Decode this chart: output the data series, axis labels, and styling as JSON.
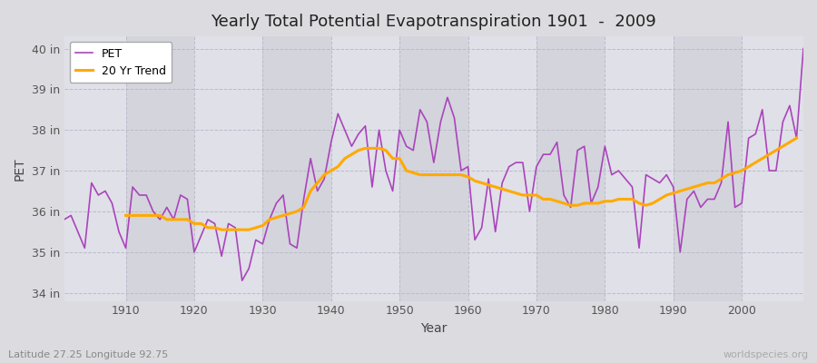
{
  "title": "Yearly Total Potential Evapotranspiration 1901  -  2009",
  "xlabel": "Year",
  "ylabel": "PET",
  "subtitle": "Latitude 27.25 Longitude 92.75",
  "watermark": "worldspecies.org",
  "ylim": [
    33.8,
    40.3
  ],
  "xlim": [
    1901,
    2009
  ],
  "yticks": [
    34,
    35,
    36,
    37,
    38,
    39,
    40
  ],
  "ytick_labels": [
    "34 in",
    "35 in",
    "36 in",
    "37 in",
    "38 in",
    "39 in",
    "40 in"
  ],
  "xticks": [
    1910,
    1920,
    1930,
    1940,
    1950,
    1960,
    1970,
    1980,
    1990,
    2000
  ],
  "pet_color": "#aa44bb",
  "trend_color": "#ffaa00",
  "bg_color": "#dcdce0",
  "plot_bg_light": "#e0e0e8",
  "plot_bg_dark": "#d4d4dc",
  "years": [
    1901,
    1902,
    1903,
    1904,
    1905,
    1906,
    1907,
    1908,
    1909,
    1910,
    1911,
    1912,
    1913,
    1914,
    1915,
    1916,
    1917,
    1918,
    1919,
    1920,
    1921,
    1922,
    1923,
    1924,
    1925,
    1926,
    1927,
    1928,
    1929,
    1930,
    1931,
    1932,
    1933,
    1934,
    1935,
    1936,
    1937,
    1938,
    1939,
    1940,
    1941,
    1942,
    1943,
    1944,
    1945,
    1946,
    1947,
    1948,
    1949,
    1950,
    1951,
    1952,
    1953,
    1954,
    1955,
    1956,
    1957,
    1958,
    1959,
    1960,
    1961,
    1962,
    1963,
    1964,
    1965,
    1966,
    1967,
    1968,
    1969,
    1970,
    1971,
    1972,
    1973,
    1974,
    1975,
    1976,
    1977,
    1978,
    1979,
    1980,
    1981,
    1982,
    1983,
    1984,
    1985,
    1986,
    1987,
    1988,
    1989,
    1990,
    1991,
    1992,
    1993,
    1994,
    1995,
    1996,
    1997,
    1998,
    1999,
    2000,
    2001,
    2002,
    2003,
    2004,
    2005,
    2006,
    2007,
    2008,
    2009
  ],
  "pet_values": [
    35.8,
    35.9,
    35.5,
    35.1,
    36.7,
    36.4,
    36.5,
    36.2,
    35.5,
    35.1,
    36.6,
    36.4,
    36.4,
    36.0,
    35.8,
    36.1,
    35.8,
    36.4,
    36.3,
    35.0,
    35.4,
    35.8,
    35.7,
    34.9,
    35.7,
    35.6,
    34.3,
    34.6,
    35.3,
    35.2,
    35.8,
    36.2,
    36.4,
    35.2,
    35.1,
    36.3,
    37.3,
    36.5,
    36.8,
    37.7,
    38.4,
    38.0,
    37.6,
    37.9,
    38.1,
    36.6,
    38.0,
    37.0,
    36.5,
    38.0,
    37.6,
    37.5,
    38.5,
    38.2,
    37.2,
    38.2,
    38.8,
    38.3,
    37.0,
    37.1,
    35.3,
    35.6,
    36.8,
    35.5,
    36.7,
    37.1,
    37.2,
    37.2,
    36.0,
    37.1,
    37.4,
    37.4,
    37.7,
    36.4,
    36.1,
    37.5,
    37.6,
    36.2,
    36.6,
    37.6,
    36.9,
    37.0,
    36.8,
    36.6,
    35.1,
    36.9,
    36.8,
    36.7,
    36.9,
    36.6,
    35.0,
    36.3,
    36.5,
    36.1,
    36.3,
    36.3,
    36.7,
    38.2,
    36.1,
    36.2,
    37.8,
    37.9,
    38.5,
    37.0,
    37.0,
    38.2,
    38.6,
    37.8,
    40.0
  ],
  "trend_values": [
    null,
    null,
    null,
    null,
    null,
    null,
    null,
    null,
    null,
    35.9,
    35.9,
    35.9,
    35.9,
    35.9,
    35.9,
    35.8,
    35.8,
    35.8,
    35.8,
    35.7,
    35.7,
    35.6,
    35.6,
    35.55,
    35.55,
    35.55,
    35.55,
    35.55,
    35.6,
    35.65,
    35.8,
    35.85,
    35.9,
    35.95,
    36.0,
    36.1,
    36.5,
    36.7,
    36.9,
    37.0,
    37.1,
    37.3,
    37.4,
    37.5,
    37.55,
    37.55,
    37.55,
    37.5,
    37.3,
    37.3,
    37.0,
    36.95,
    36.9,
    36.9,
    36.9,
    36.9,
    36.9,
    36.9,
    36.9,
    36.85,
    36.75,
    36.7,
    36.65,
    36.6,
    36.55,
    36.5,
    36.45,
    36.4,
    36.4,
    36.4,
    36.3,
    36.3,
    36.25,
    36.2,
    36.15,
    36.15,
    36.2,
    36.2,
    36.2,
    36.25,
    36.25,
    36.3,
    36.3,
    36.3,
    36.2,
    36.15,
    36.2,
    36.3,
    36.4,
    36.45,
    36.5,
    36.55,
    36.6,
    36.65,
    36.7,
    36.7,
    36.8,
    36.9,
    36.95,
    37.0,
    37.1,
    37.2,
    37.3,
    37.4,
    37.5,
    37.6,
    37.7,
    37.8,
    null
  ]
}
